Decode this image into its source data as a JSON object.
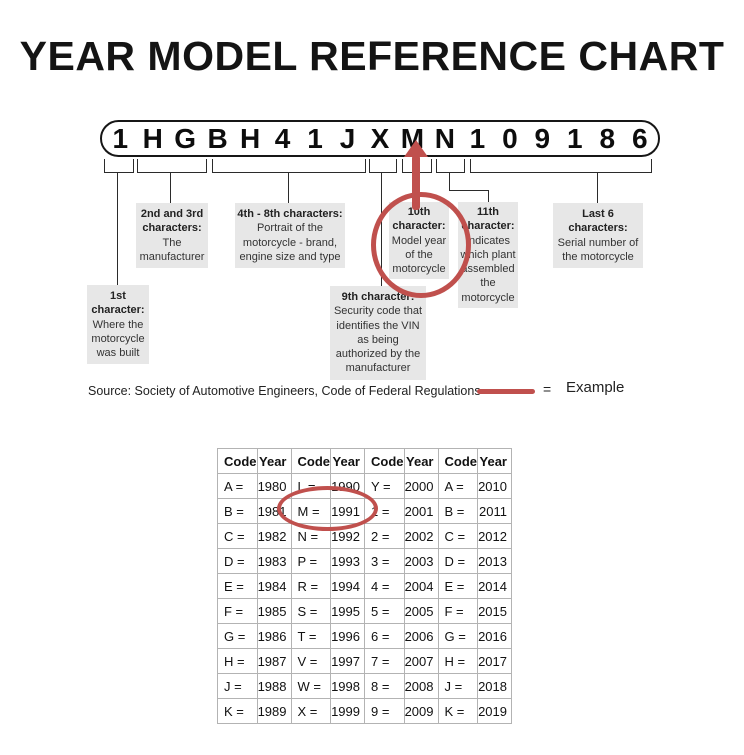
{
  "title": "YEAR MODEL REFERENCE CHART",
  "vin": {
    "characters": [
      "1",
      "H",
      "G",
      "B",
      "H",
      "4",
      "1",
      "J",
      "X",
      "M",
      "N",
      "1",
      "0",
      "9",
      "1",
      "8",
      "6"
    ]
  },
  "diagram": {
    "callouts": [
      {
        "header": "1st character:",
        "body": "Where the motorcycle was built"
      },
      {
        "header": "2nd and 3rd characters:",
        "body": "The manufacturer"
      },
      {
        "header": "4th - 8th characters:",
        "body": "Portrait of the motorcycle - brand, engine size and type"
      },
      {
        "header": "9th character:",
        "body": "Security code that identifies the VIN as being authorized by the manufacturer"
      },
      {
        "header": "10th character:",
        "body": "Model year of the motorcycle"
      },
      {
        "header": "11th character:",
        "body": "Indicates which plant assembled the motorcycle"
      },
      {
        "header": "Last 6 characters:",
        "body": "Serial number of the motorcycle"
      }
    ],
    "highlighted_character": "M"
  },
  "footer": {
    "source": "Source:  Society of Automotive Engineers, Code of Federal Regulations",
    "legend_equals": "=",
    "legend_label": "Example"
  },
  "colors": {
    "example_red": "#c0504d",
    "callout_background": "#e7e7e7"
  },
  "chart_data": {
    "type": "table",
    "headers": [
      "Code",
      "Year",
      "Code",
      "Year",
      "Code",
      "Year",
      "Code",
      "Year"
    ],
    "rows": [
      [
        "A =",
        "1980",
        "L =",
        "1990",
        "Y =",
        "2000",
        "A =",
        "2010"
      ],
      [
        "B =",
        "1981",
        "M =",
        "1991",
        "1 =",
        "2001",
        "B =",
        "2011"
      ],
      [
        "C =",
        "1982",
        "N =",
        "1992",
        "2 =",
        "2002",
        "C =",
        "2012"
      ],
      [
        "D =",
        "1983",
        "P =",
        "1993",
        "3 =",
        "2003",
        "D =",
        "2013"
      ],
      [
        "E =",
        "1984",
        "R =",
        "1994",
        "4 =",
        "2004",
        "E =",
        "2014"
      ],
      [
        "F =",
        "1985",
        "S =",
        "1995",
        "5 =",
        "2005",
        "F =",
        "2015"
      ],
      [
        "G =",
        "1986",
        "T =",
        "1996",
        "6 =",
        "2006",
        "G =",
        "2016"
      ],
      [
        "H =",
        "1987",
        "V =",
        "1997",
        "7 =",
        "2007",
        "H =",
        "2017"
      ],
      [
        "J =",
        "1988",
        "W =",
        "1998",
        "8 =",
        "2008",
        "J =",
        "2018"
      ],
      [
        "K =",
        "1989",
        "X =",
        "1999",
        "9 =",
        "2009",
        "K =",
        "2019"
      ]
    ],
    "highlighted_pair": "M = 1991"
  }
}
